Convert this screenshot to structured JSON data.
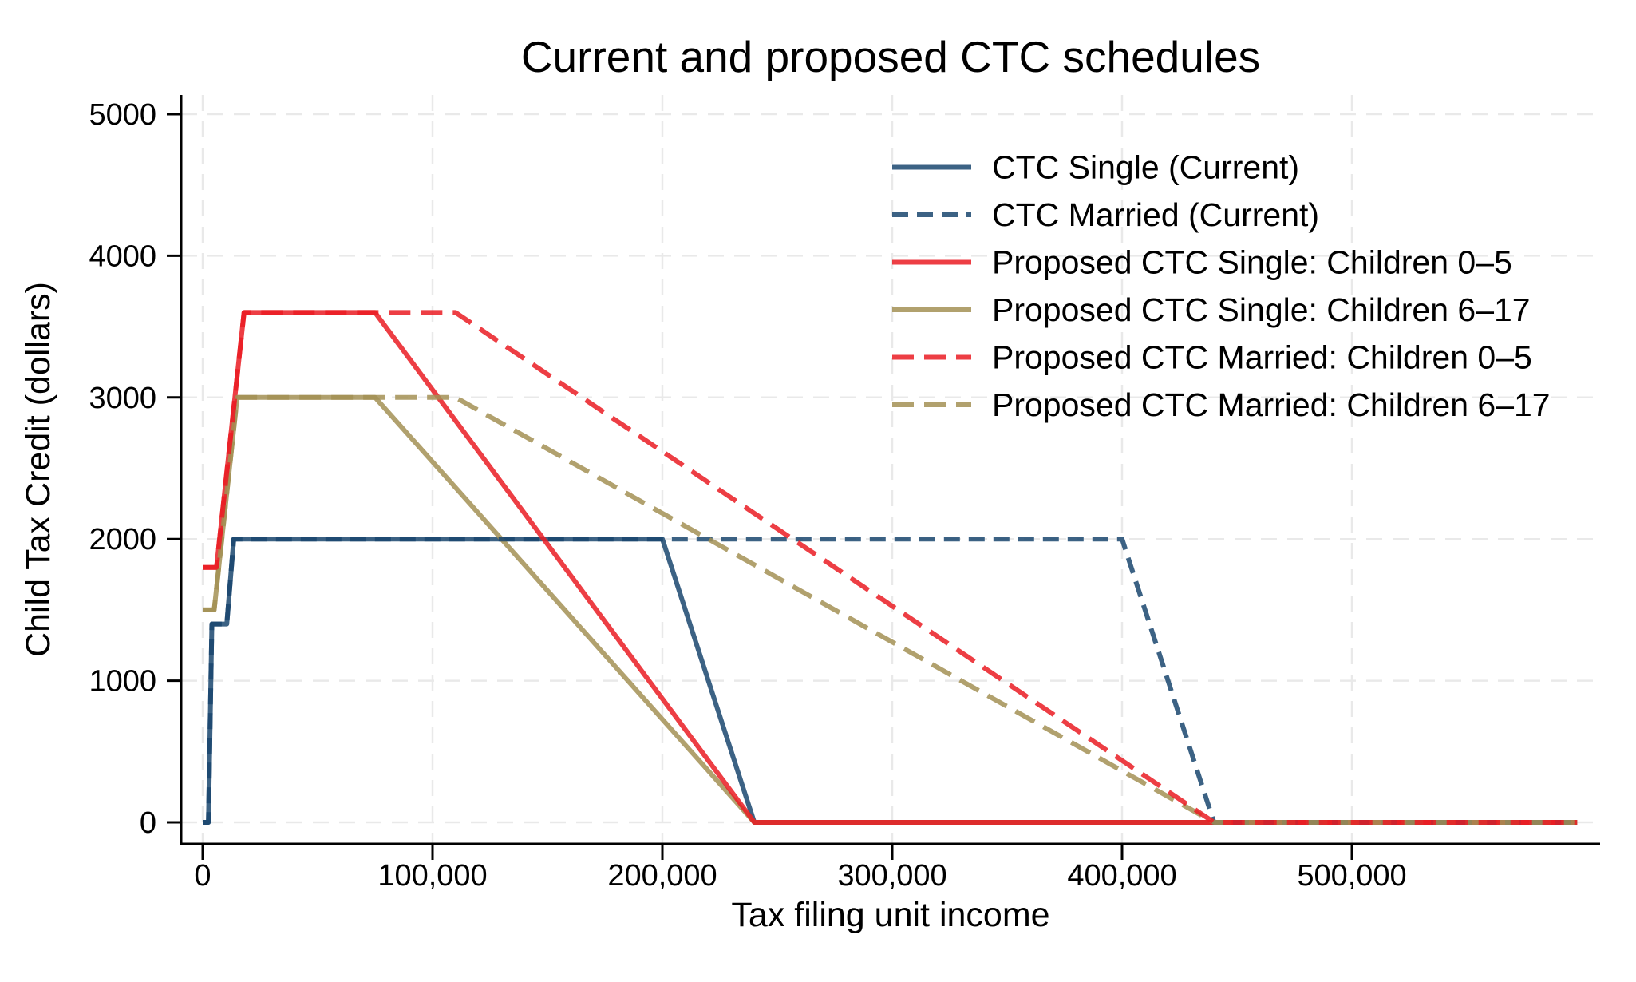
{
  "chart_data": {
    "type": "line",
    "title": "Current and proposed CTC schedules",
    "xlabel": "Tax filing unit income",
    "ylabel": "Child Tax Credit (dollars)",
    "grid": true,
    "legend_position": "top-right-inside",
    "xlim": [
      -9000,
      608000
    ],
    "ylim": [
      -150,
      5140
    ],
    "x_ticks": [
      {
        "v": 0,
        "label": "0"
      },
      {
        "v": 100000,
        "label": "100,000"
      },
      {
        "v": 200000,
        "label": "200,000"
      },
      {
        "v": 300000,
        "label": "300,000"
      },
      {
        "v": 400000,
        "label": "400,000"
      },
      {
        "v": 500000,
        "label": "500,000"
      }
    ],
    "y_ticks": [
      {
        "v": 0,
        "label": "0"
      },
      {
        "v": 1000,
        "label": "1000"
      },
      {
        "v": 2000,
        "label": "2000"
      },
      {
        "v": 3000,
        "label": "3000"
      },
      {
        "v": 4000,
        "label": "4000"
      },
      {
        "v": 5000,
        "label": "5000"
      }
    ],
    "draw_order": [
      0,
      3,
      2,
      1,
      5,
      4
    ],
    "series": [
      {
        "name": "CTC Single (Current)",
        "color": "#1a476f",
        "style": "solid",
        "dash": "",
        "points": [
          [
            0,
            0
          ],
          [
            2500,
            0
          ],
          [
            4000,
            1400
          ],
          [
            10500,
            1400
          ],
          [
            13500,
            2000
          ],
          [
            200000,
            2000
          ],
          [
            240000,
            0
          ],
          [
            598000,
            0
          ]
        ]
      },
      {
        "name": "CTC Married (Current)",
        "color": "#1a476f",
        "style": "dashed",
        "dash": "20 11",
        "points": [
          [
            0,
            0
          ],
          [
            2500,
            0
          ],
          [
            4000,
            1400
          ],
          [
            10500,
            1400
          ],
          [
            13500,
            2000
          ],
          [
            400000,
            2000
          ],
          [
            440000,
            0
          ],
          [
            598000,
            0
          ]
        ]
      },
      {
        "name": "Proposed CTC Single: Children 0–5",
        "color": "#ea1c23",
        "style": "solid",
        "dash": "",
        "points": [
          [
            0,
            1800
          ],
          [
            6000,
            1800
          ],
          [
            18000,
            3600
          ],
          [
            75000,
            3600
          ],
          [
            240000,
            0
          ],
          [
            598000,
            0
          ]
        ]
      },
      {
        "name": "Proposed CTC Single: Children 6–17",
        "color": "#a39155",
        "style": "solid",
        "dash": "",
        "points": [
          [
            0,
            1500
          ],
          [
            5000,
            1500
          ],
          [
            15000,
            3000
          ],
          [
            75000,
            3000
          ],
          [
            240000,
            0
          ],
          [
            598000,
            0
          ]
        ]
      },
      {
        "name": "Proposed CTC Married: Children 0–5",
        "color": "#ea1c23",
        "style": "dashed",
        "dash": "27 13",
        "points": [
          [
            0,
            1800
          ],
          [
            6000,
            1800
          ],
          [
            18000,
            3600
          ],
          [
            110000,
            3600
          ],
          [
            440000,
            0
          ],
          [
            598000,
            0
          ]
        ]
      },
      {
        "name": "Proposed CTC Married: Children 6–17",
        "color": "#a39155",
        "style": "dashed",
        "dash": "27 13",
        "points": [
          [
            0,
            1500
          ],
          [
            5000,
            1500
          ],
          [
            15000,
            3000
          ],
          [
            110000,
            3000
          ],
          [
            440000,
            0
          ],
          [
            598000,
            0
          ]
        ]
      }
    ]
  }
}
